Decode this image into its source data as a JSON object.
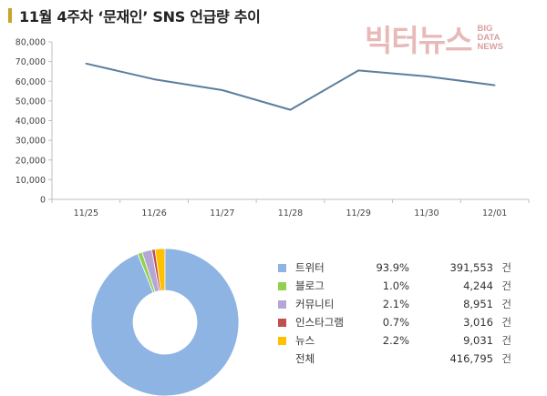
{
  "header": {
    "title": "11월 4주차 ‘문재인’ SNS 언급량 추이"
  },
  "watermark": {
    "main": "빅터뉴스",
    "sub": [
      "BIG",
      "DATA",
      "NEWS"
    ]
  },
  "chart_data": [
    {
      "type": "line",
      "title": "",
      "categories": [
        "11/25",
        "11/26",
        "11/27",
        "11/28",
        "11/29",
        "11/30",
        "12/01"
      ],
      "series": [
        {
          "values": [
            69000,
            61000,
            55500,
            45500,
            65500,
            62500,
            58000
          ]
        }
      ],
      "ylim": [
        0,
        80000
      ],
      "yticks": [
        "0",
        "10,000",
        "20,000",
        "30,000",
        "40,000",
        "50,000",
        "60,000",
        "70,000",
        "80,000"
      ],
      "line_color": "#5b7e9e",
      "grid": false
    },
    {
      "type": "pie",
      "donut": true,
      "slices": [
        {
          "label": "트위터",
          "percent": "93.9%",
          "count": "391,553",
          "unit": "건",
          "value": 391553,
          "color": "#8eb4e3"
        },
        {
          "label": "블로그",
          "percent": "1.0%",
          "count": "4,244",
          "unit": "건",
          "value": 4244,
          "color": "#92d050"
        },
        {
          "label": "커뮤니티",
          "percent": "2.1%",
          "count": "8,951",
          "unit": "건",
          "value": 8951,
          "color": "#b4a7d6"
        },
        {
          "label": "인스타그램",
          "percent": "0.7%",
          "count": "3,016",
          "unit": "건",
          "value": 3016,
          "color": "#c0504d"
        },
        {
          "label": "뉴스",
          "percent": "2.2%",
          "count": "9,031",
          "unit": "건",
          "value": 9031,
          "color": "#ffc000"
        }
      ],
      "total": {
        "label": "전체",
        "count": "416,795",
        "unit": "건"
      },
      "legend_position": "right"
    }
  ]
}
